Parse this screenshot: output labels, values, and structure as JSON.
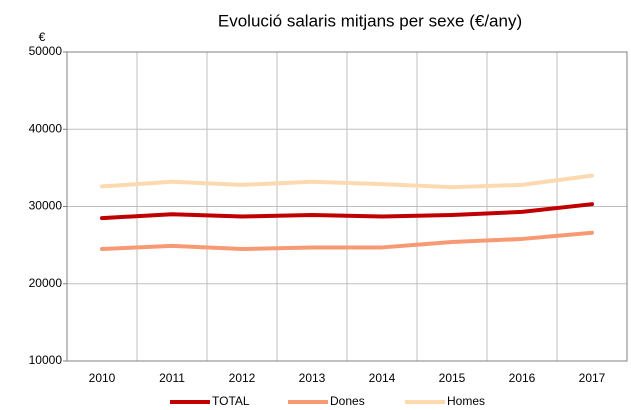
{
  "chart_data": {
    "type": "line",
    "title": "Evolució salaris mitjans per sexe (€/any)",
    "y_label": "€",
    "categories": [
      "2010",
      "2011",
      "2012",
      "2013",
      "2014",
      "2015",
      "2016",
      "2017"
    ],
    "series": [
      {
        "name": "TOTAL",
        "color": "#c00000",
        "values": [
          28500,
          29000,
          28700,
          28900,
          28700,
          28900,
          29300,
          30300
        ]
      },
      {
        "name": "Dones",
        "color": "#f79a74",
        "values": [
          24500,
          24900,
          24500,
          24700,
          24700,
          25400,
          25800,
          26600
        ]
      },
      {
        "name": "Homes",
        "color": "#fdd9b0",
        "values": [
          32600,
          33200,
          32800,
          33200,
          32900,
          32500,
          32800,
          34000
        ]
      }
    ],
    "ylim": [
      10000,
      50000
    ],
    "yticks": [
      10000,
      20000,
      30000,
      40000,
      50000
    ],
    "grid": true,
    "legend": "bottom"
  }
}
